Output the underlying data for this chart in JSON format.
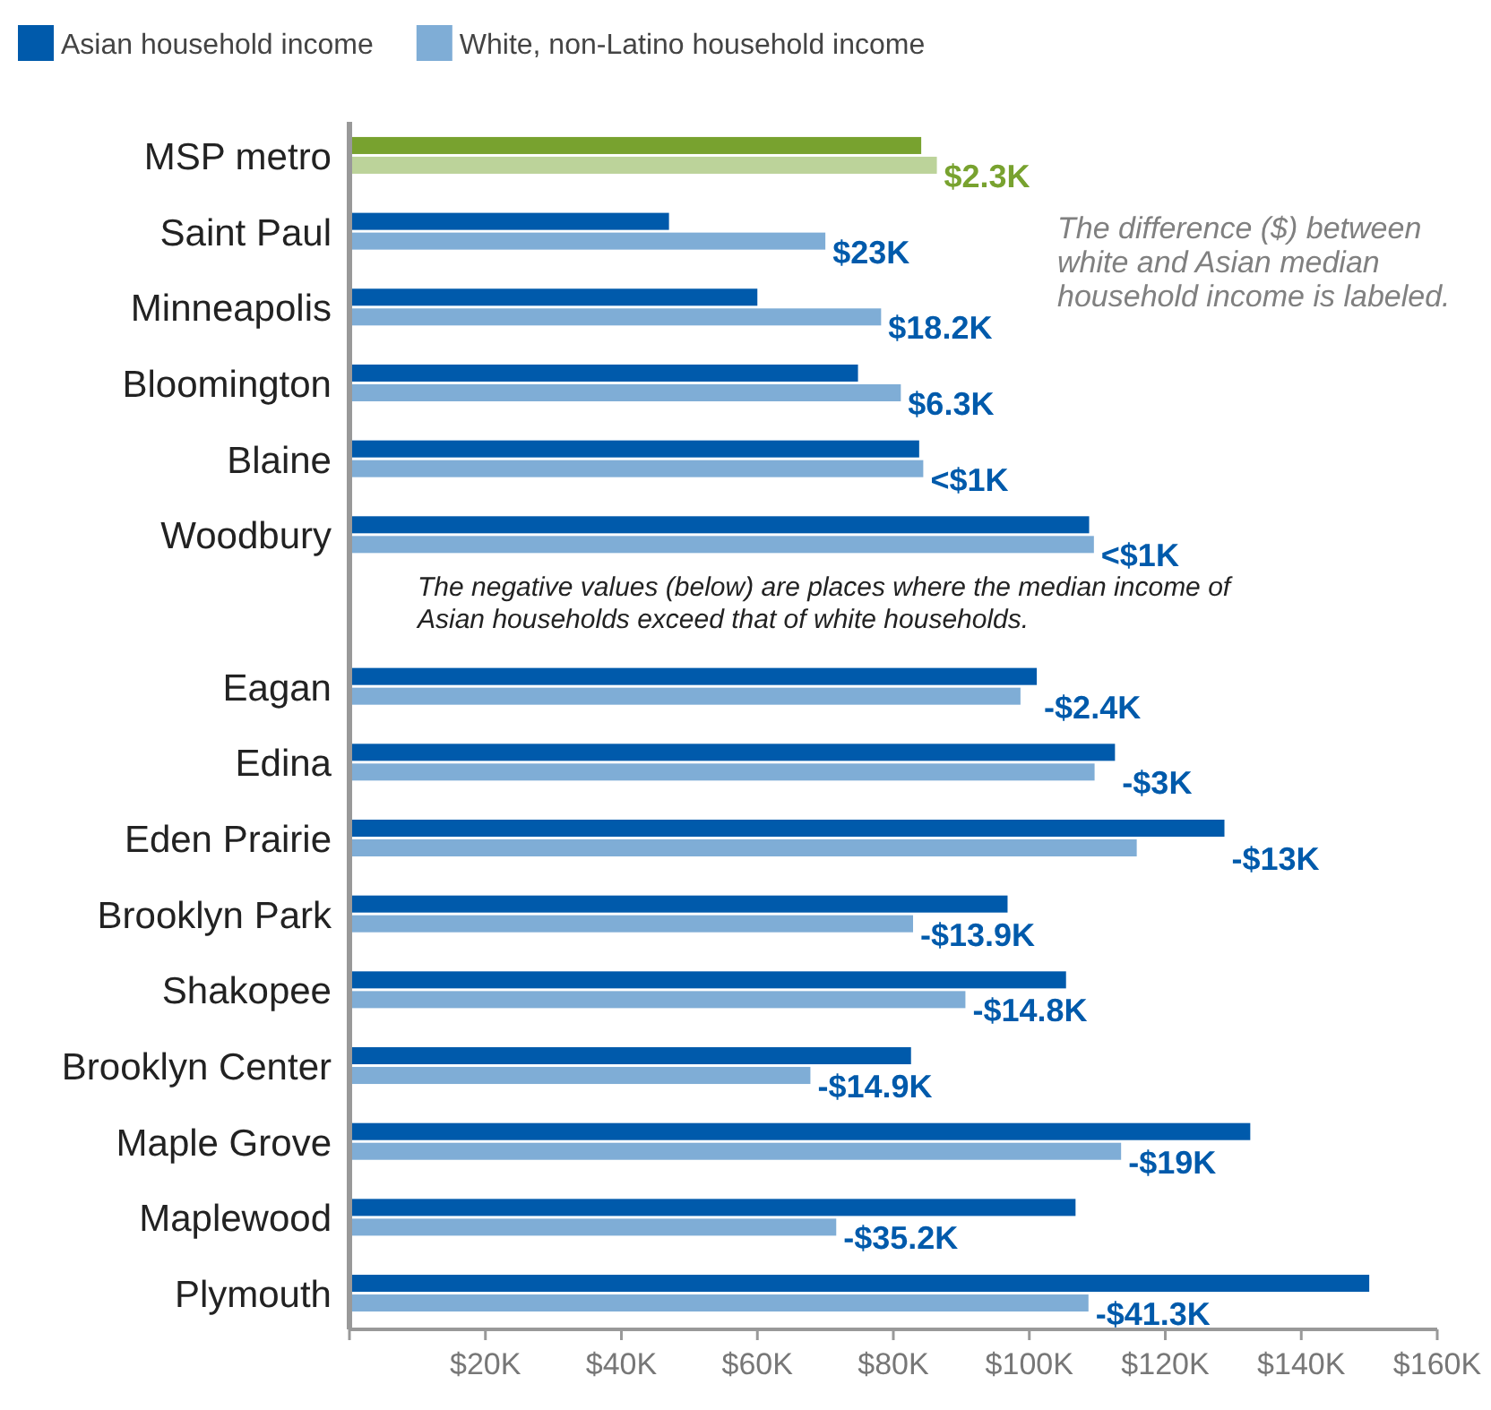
{
  "chart_data": {
    "type": "bar",
    "orientation": "horizontal",
    "categories": [
      "MSP metro",
      "Saint Paul",
      "Minneapolis",
      "Bloomington",
      "Blaine",
      "Woodbury",
      null,
      "Eagan",
      "Edina",
      "Eden Prairie",
      "Brooklyn Park",
      "Shakopee",
      "Brooklyn Center",
      "Maple Grove",
      "Maplewood",
      "Plymouth"
    ],
    "series": [
      {
        "name": "Asian household income",
        "color": "#005aab",
        "colors": [
          "#78a22f",
          "#005aab",
          "#005aab",
          "#005aab",
          "#005aab",
          "#005aab",
          null,
          "#005aab",
          "#005aab",
          "#005aab",
          "#005aab",
          "#005aab",
          "#005aab",
          "#005aab",
          "#005aab",
          "#005aab"
        ],
        "values": [
          84.1,
          47,
          60,
          74.8,
          83.8,
          108.8,
          null,
          101.1,
          112.6,
          128.7,
          96.8,
          105.4,
          82.6,
          132.5,
          106.8,
          150
        ]
      },
      {
        "name": "White, non-Latino household income",
        "color": "#7fadd6",
        "colors": [
          "#bcd39a",
          "#7fadd6",
          "#7fadd6",
          "#7fadd6",
          "#7fadd6",
          "#7fadd6",
          null,
          "#7fadd6",
          "#7fadd6",
          "#7fadd6",
          "#7fadd6",
          "#7fadd6",
          "#7fadd6",
          "#7fadd6",
          "#7fadd6",
          "#7fadd6"
        ],
        "values": [
          86.4,
          70,
          78.2,
          81.1,
          84.4,
          109.5,
          null,
          98.7,
          109.6,
          115.8,
          82.9,
          90.6,
          67.8,
          113.5,
          71.6,
          108.7
        ]
      }
    ],
    "xlim": [
      0,
      160
    ],
    "xticks": [
      {
        "value": 0,
        "label": null
      },
      {
        "value": 20,
        "label": "$20K"
      },
      {
        "value": 40,
        "label": "$40K"
      },
      {
        "value": 60,
        "label": "$60K"
      },
      {
        "value": 80,
        "label": "$80K"
      },
      {
        "value": 100,
        "label": "$100K"
      },
      {
        "value": 120,
        "label": "$120K"
      },
      {
        "value": 140,
        "label": "$140K"
      },
      {
        "value": 160,
        "label": "$160K"
      }
    ],
    "legend": "top left",
    "grid": false,
    "annotations": [
      "The difference ($) between white and Asian median household income is labeled.",
      "The negative values (below) are places where the median income of Asian households exceed that of white households.",
      {
        "text": "$2.3K",
        "x": 86.4,
        "y": "MSP metro"
      },
      {
        "text": "$23K",
        "x": 70,
        "y": "Saint Paul"
      },
      {
        "text": "$18.2K",
        "x": 78.2,
        "y": "Minneapolis"
      },
      {
        "text": "$6.3K",
        "x": 81.1,
        "y": "Bloomington"
      },
      {
        "text": "<$1K",
        "x": 84.4,
        "y": "Blaine"
      },
      {
        "text": "<$1K",
        "x": 109.5,
        "y": "Woodbury"
      },
      {
        "text": "-$2.4K",
        "x": 101.1,
        "y": "Eagan"
      },
      {
        "text": "-$3K",
        "x": 112.6,
        "y": "Edina"
      },
      {
        "text": "-$13K",
        "x": 128.7,
        "y": "Eden Prairie"
      },
      {
        "text": "-$13.9K",
        "x": 82.9,
        "y": "Brooklyn Park"
      },
      {
        "text": "-$14.8K",
        "x": 90.6,
        "y": "Shakopee"
      },
      {
        "text": "-$14.9K",
        "x": 67.8,
        "y": "Brooklyn Center"
      },
      {
        "text": "-$19K",
        "x": 113.5,
        "y": "Maple Grove"
      },
      {
        "text": "-$35.2K",
        "x": 71.6,
        "y": "Maplewood"
      },
      {
        "text": "-$41.3K",
        "x": 108.7,
        "y": "Plymouth"
      }
    ]
  }
}
